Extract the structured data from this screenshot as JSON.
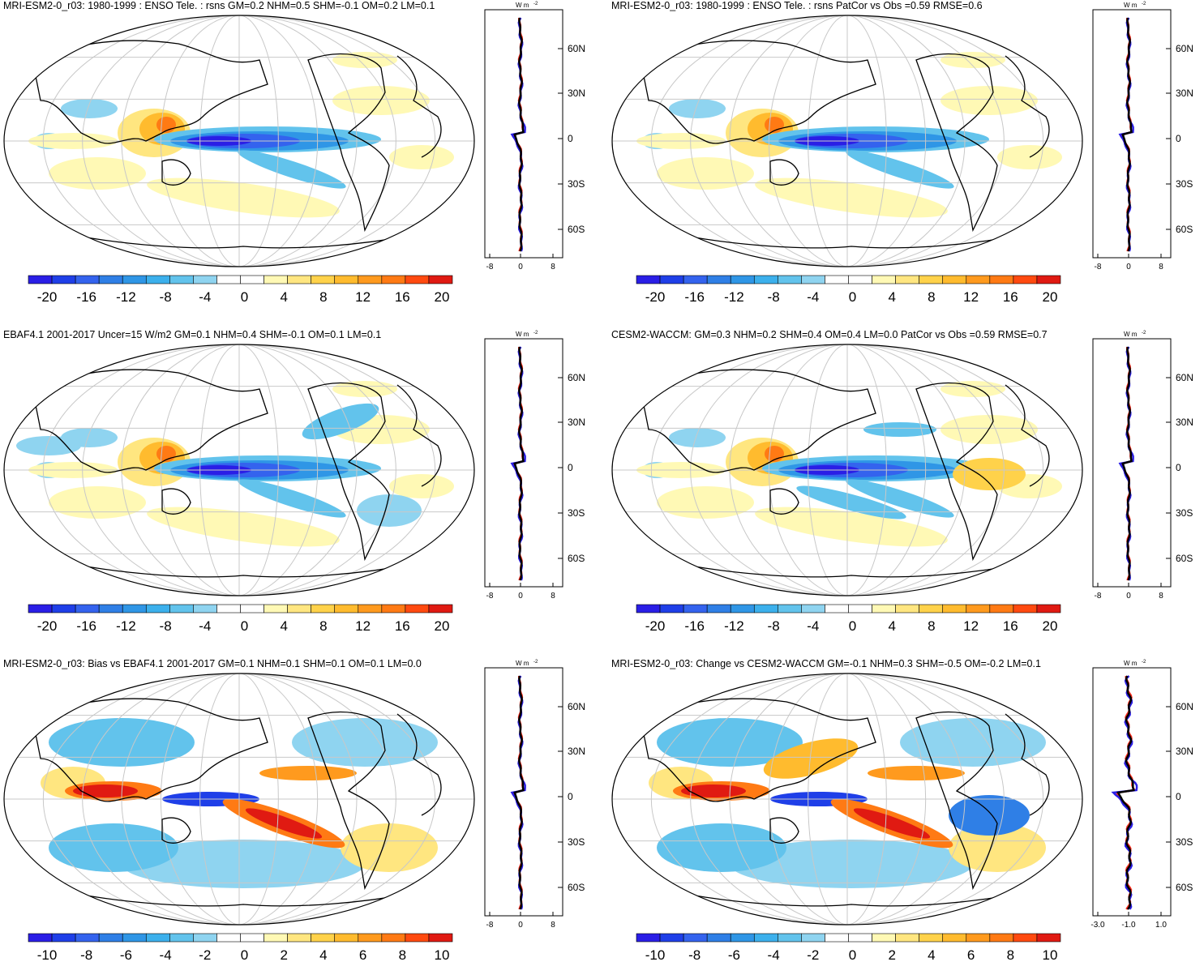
{
  "colors": {
    "neg": [
      "#2a1ee6",
      "#1f3fe8",
      "#3463ee",
      "#2f7fe6",
      "#2f96e6",
      "#3cb0ec",
      "#62c3ec",
      "#8fd4f0"
    ],
    "pos": [
      "#fff9b5",
      "#ffe680",
      "#ffd24a",
      "#ffbb2e",
      "#ff9a1e",
      "#ff7a14",
      "#ff4a10",
      "#e01a12"
    ],
    "land": "#000000",
    "grid": "#c8c8c8",
    "obs_line": "#2a1ee6",
    "model_line": "#ff2a1a",
    "mean_line": "#000000"
  },
  "zonal": {
    "unit_label": "W m",
    "unit_exp": "-2",
    "lat_labels": [
      "60N",
      "30N",
      "0",
      "30S",
      "60S"
    ]
  },
  "panels": [
    {
      "title": "MRI-ESM2-0_r03: 1980-1999 : ENSO Tele. : rsns GM=0.2 NHM=0.5 SHM=-0.1 OM=0.2 LM=0.1",
      "cbar_labels": [
        "-20",
        "-16",
        "-12",
        "-8",
        "-4",
        "0",
        "4",
        "8",
        "12",
        "16",
        "20"
      ],
      "zonal_ticks": [
        "-8",
        "0",
        "8"
      ],
      "pattern": "enso"
    },
    {
      "title": "MRI-ESM2-0_r03: 1980-1999 : ENSO Tele. : rsns PatCor vs Obs =0.59 RMSE=0.6",
      "cbar_labels": [
        "-20",
        "-16",
        "-12",
        "-8",
        "-4",
        "0",
        "4",
        "8",
        "12",
        "16",
        "20"
      ],
      "zonal_ticks": [
        "-8",
        "0",
        "8"
      ],
      "pattern": "enso"
    },
    {
      "title": "EBAF4.1 2001-2017 Uncer=15 W/m2 GM=0.1 NHM=0.4 SHM=-0.1 OM=0.1 LM=0.1",
      "cbar_labels": [
        "-20",
        "-16",
        "-12",
        "-8",
        "-4",
        "0",
        "4",
        "8",
        "12",
        "16",
        "20"
      ],
      "zonal_ticks": [
        "-8",
        "0",
        "8"
      ],
      "pattern": "obs"
    },
    {
      "title": "CESM2-WACCM: GM=0.3 NHM=0.2 SHM=0.4 OM=0.4 LM=0.0 PatCor vs Obs =0.59 RMSE=0.7",
      "cbar_labels": [
        "-20",
        "-16",
        "-12",
        "-8",
        "-4",
        "0",
        "4",
        "8",
        "12",
        "16",
        "20"
      ],
      "zonal_ticks": [
        "-8",
        "0",
        "8"
      ],
      "pattern": "cesm"
    },
    {
      "title": "MRI-ESM2-0_r03: Bias vs EBAF4.1 2001-2017 GM=0.1 NHM=0.1 SHM=0.1 OM=0.1 LM=0.0",
      "cbar_labels": [
        "-10",
        "-8",
        "-6",
        "-4",
        "-2",
        "0",
        "2",
        "4",
        "6",
        "8",
        "10"
      ],
      "zonal_ticks": [
        "-8",
        "0",
        "8"
      ],
      "pattern": "bias"
    },
    {
      "title": "MRI-ESM2-0_r03: Change vs CESM2-WACCM GM=-0.1 NHM=0.3 SHM=-0.5 OM=-0.2 LM=0.1",
      "cbar_labels": [
        "-10",
        "-8",
        "-6",
        "-4",
        "-2",
        "0",
        "2",
        "4",
        "6",
        "8",
        "10"
      ],
      "zonal_ticks": [
        "-3.0",
        "-1.0",
        "1.0"
      ],
      "pattern": "change"
    }
  ]
}
